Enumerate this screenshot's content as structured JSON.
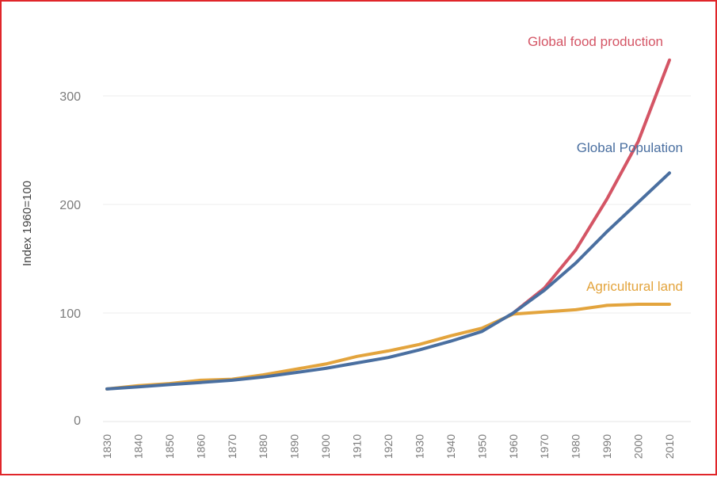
{
  "chart_data": {
    "type": "line",
    "ylabel": "Index 1960=100",
    "xlabel": "",
    "ylim": [
      0,
      350
    ],
    "yticks": [
      0,
      100,
      200,
      300
    ],
    "grid": "horizontal",
    "x": [
      1830,
      1840,
      1850,
      1860,
      1870,
      1880,
      1890,
      1900,
      1910,
      1920,
      1930,
      1940,
      1950,
      1960,
      1970,
      1980,
      1990,
      2000,
      2010
    ],
    "series": [
      {
        "name": "Global food production",
        "color": "#d45565",
        "x": [
          1960,
          1970,
          1980,
          1990,
          2000,
          2010
        ],
        "values": [
          100,
          123,
          158,
          205,
          258,
          333
        ]
      },
      {
        "name": "Global Population",
        "color": "#4a6fa0",
        "x": [
          1830,
          1840,
          1850,
          1860,
          1870,
          1880,
          1890,
          1900,
          1910,
          1920,
          1930,
          1940,
          1950,
          1960,
          1970,
          1980,
          1990,
          2000,
          2010
        ],
        "values": [
          30,
          32,
          34,
          36,
          38,
          41,
          45,
          49,
          54,
          59,
          66,
          74,
          83,
          100,
          121,
          146,
          175,
          202,
          229
        ]
      },
      {
        "name": "Agricultural land",
        "color": "#e3a43d",
        "x": [
          1830,
          1840,
          1850,
          1860,
          1870,
          1880,
          1890,
          1900,
          1910,
          1920,
          1930,
          1940,
          1950,
          1960,
          1970,
          1980,
          1990,
          2000,
          2010
        ],
        "values": [
          30,
          33,
          35,
          38,
          39,
          43,
          48,
          53,
          60,
          65,
          71,
          79,
          86,
          99,
          101,
          103,
          107,
          108,
          108
        ]
      }
    ]
  }
}
